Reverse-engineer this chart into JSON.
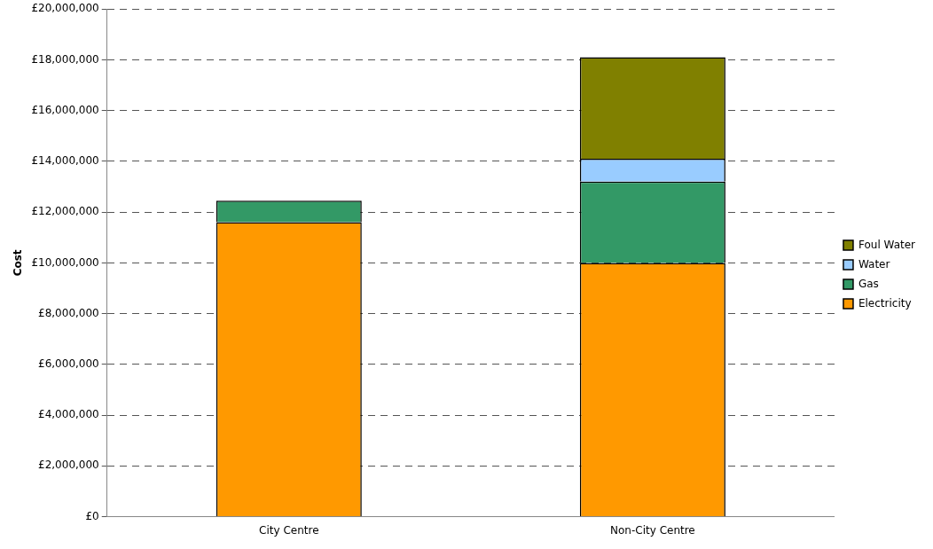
{
  "chart_data": {
    "type": "bar",
    "stacked": true,
    "ylabel": "Cost",
    "categories": [
      "City Centre",
      "Non-City Centre"
    ],
    "series": [
      {
        "name": "Electricity",
        "color": "#ff9900",
        "values": [
          11600000,
          10000000
        ]
      },
      {
        "name": "Gas",
        "color": "#339966",
        "values": [
          850000,
          3200000
        ]
      },
      {
        "name": "Water",
        "color": "#99ccff",
        "values": [
          null,
          900000
        ]
      },
      {
        "name": "Foul Water",
        "color": "#808000",
        "values": [
          null,
          4000000
        ]
      }
    ],
    "ylim": [
      0,
      20000000
    ],
    "yticks": [
      {
        "value": 0,
        "label": "£0"
      },
      {
        "value": 2000000,
        "label": "£2,000,000"
      },
      {
        "value": 4000000,
        "label": "£4,000,000"
      },
      {
        "value": 6000000,
        "label": "£6,000,000"
      },
      {
        "value": 8000000,
        "label": "£8,000,000"
      },
      {
        "value": 10000000,
        "label": "£10,000,000"
      },
      {
        "value": 12000000,
        "label": "£12,000,000"
      },
      {
        "value": 14000000,
        "label": "£14,000,000"
      },
      {
        "value": 16000000,
        "label": "£16,000,000"
      },
      {
        "value": 18000000,
        "label": "£18,000,000"
      },
      {
        "value": 20000000,
        "label": "£20,000,000"
      }
    ],
    "grid": "y",
    "legend": "right"
  }
}
